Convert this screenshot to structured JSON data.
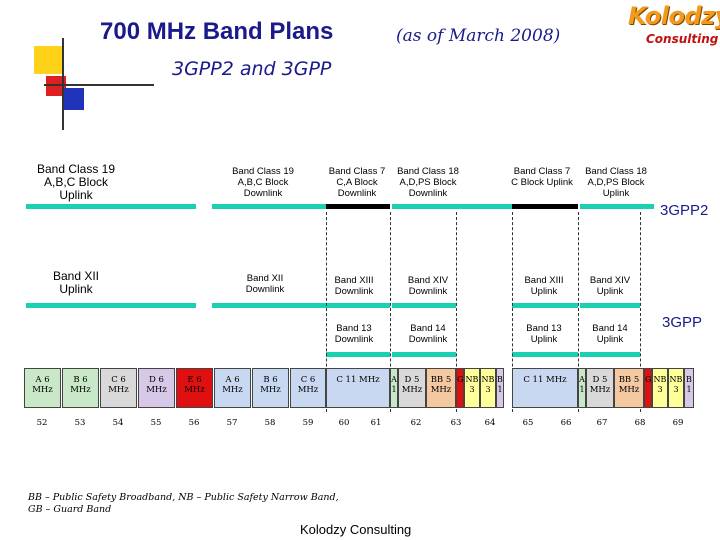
{
  "header": {
    "title": "700 MHz Band Plans",
    "title_note": "(as of March 2008)",
    "subtitle": "3GPP2 and 3GPP",
    "logo_main": "Kolodzy",
    "logo_sub": "Consulting"
  },
  "labels": {
    "bc19_uplink": "Band Class 19 A,B,C Block Uplink",
    "bc19_downlink": "Band Class 19 A,B,C Block Downlink",
    "bc7_downlink": "Band Class 7 C,A Block Downlink",
    "bc18_downlink": "Band Class 18 A,D,PS Block Downlink",
    "bc7_uplink": "Band Class 7 C Block Uplink",
    "bc18_uplink": "Band Class 18 A,D,PS Block Uplink",
    "tag_3gpp2": "3GPP2",
    "bxii_uplink": "Band XII Uplink",
    "bxii_downlink": "Band XII Downlink",
    "bxiii_downlink": "Band XIII Downlink",
    "bxiv_downlink": "Band XIV Downlink",
    "bxiii_uplink": "Band XIII Uplink",
    "bxiv_uplink": "Band XIV Uplink",
    "b13_downlink": "Band 13 Downlink",
    "b14_downlink": "Band 14 Downlink",
    "b13_uplink": "Band 13 Uplink",
    "b14_uplink": "Band 14 Uplink",
    "tag_3gpp": "3GPP"
  },
  "colors": {
    "teal": "#1ad0b0",
    "black_bar": "#000000",
    "cell_green": "#c8e8c8",
    "cell_gray": "#d9d9d9",
    "cell_red": "#e01010",
    "cell_purple": "#d8c8e8",
    "cell_blue": "#c8d8f0",
    "cell_orange": "#f4c8a0",
    "cell_yellow": "#ffff99"
  },
  "blocks": [
    {
      "text": "A 6 MHz"
    },
    {
      "text": "B 6 MHz"
    },
    {
      "text": "C 6 MHz"
    },
    {
      "text": "D 6 MHz"
    },
    {
      "text": "E 6 MHz"
    },
    {
      "text": "A 6 MHz"
    },
    {
      "text": "B 6 MHz"
    },
    {
      "text": "C 6 MHz"
    },
    {
      "text": "C 11 MHz"
    },
    {
      "text": "A 1"
    },
    {
      "text": "D 5 MHz"
    },
    {
      "text": "BB 5 MHz"
    },
    {
      "text": "GB"
    },
    {
      "text": "NB 3"
    },
    {
      "text": "NB 3"
    },
    {
      "text": "B 1"
    },
    {
      "text": "C 11 MHz"
    },
    {
      "text": "A 1"
    },
    {
      "text": "D 5 MHz"
    },
    {
      "text": "BB 5 MHz"
    },
    {
      "text": "GB"
    },
    {
      "text": "NB 3"
    },
    {
      "text": "NB 3"
    },
    {
      "text": "B 1"
    }
  ],
  "channels": [
    "52",
    "53",
    "54",
    "55",
    "56",
    "57",
    "58",
    "59",
    "60",
    "61",
    "62",
    "63",
    "64",
    "65",
    "66",
    "67",
    "68",
    "69"
  ],
  "footnote_line1": "BB – Public Safety Broadband, NB – Public Safety Narrow Band,",
  "footnote_line2": "GB – Guard Band",
  "footer": "Kolodzy Consulting"
}
